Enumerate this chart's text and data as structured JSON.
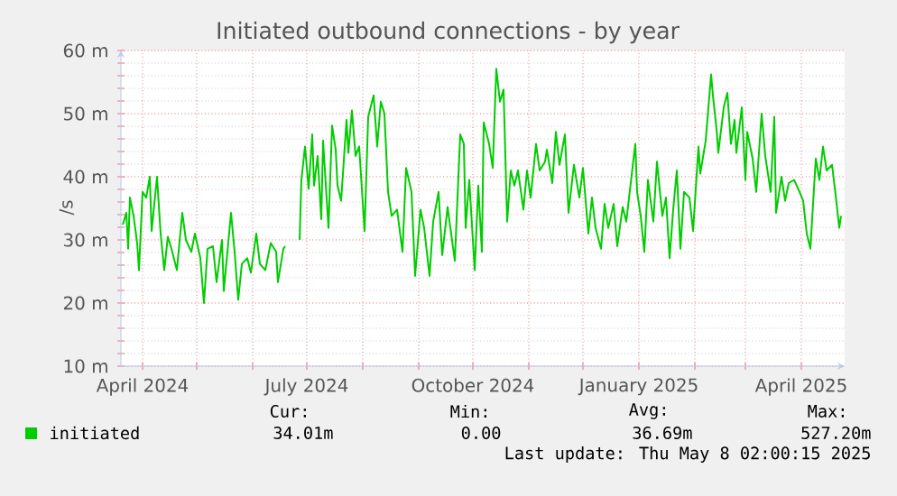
{
  "chart_data": {
    "type": "line",
    "title": "Initiated outbound connections - by year",
    "ylabel": "/s",
    "xlim": [
      "2024-03-20",
      "2025-04-25"
    ],
    "ylim": [
      10,
      60
    ],
    "xticks": [
      {
        "value": "2024-04-01",
        "label": "April 2024"
      },
      {
        "value": "2024-05-01",
        "label": null
      },
      {
        "value": "2024-06-01",
        "label": null
      },
      {
        "value": "2024-07-01",
        "label": "July 2024"
      },
      {
        "value": "2024-08-01",
        "label": null
      },
      {
        "value": "2024-09-01",
        "label": null
      },
      {
        "value": "2024-10-01",
        "label": "October 2024"
      },
      {
        "value": "2024-11-01",
        "label": null
      },
      {
        "value": "2024-12-01",
        "label": null
      },
      {
        "value": "2025-01-01",
        "label": "January 2025"
      },
      {
        "value": "2025-02-01",
        "label": null
      },
      {
        "value": "2025-03-01",
        "label": null
      },
      {
        "value": "2025-04-01",
        "label": "April 2025"
      }
    ],
    "yticks": [
      {
        "value": 10,
        "label": "10 m"
      },
      {
        "value": 20,
        "label": "20 m"
      },
      {
        "value": 30,
        "label": "30 m"
      },
      {
        "value": 40,
        "label": "40 m"
      },
      {
        "value": 50,
        "label": "50 m"
      },
      {
        "value": 60,
        "label": "60 m"
      }
    ],
    "grid": true,
    "legend": "bottom",
    "x": [
      "2024-03-21",
      "2024-03-23",
      "2024-03-24",
      "2024-03-25",
      "2024-03-27",
      "2024-03-29",
      "2024-03-30",
      "2024-04-01",
      "2024-04-03",
      "2024-04-05",
      "2024-04-06",
      "2024-04-09",
      "2024-04-11",
      "2024-04-13",
      "2024-04-15",
      "2024-04-17",
      "2024-04-20",
      "2024-04-23",
      "2024-04-25",
      "2024-04-28",
      "2024-04-30",
      "2024-05-03",
      "2024-05-05",
      "2024-05-07",
      "2024-05-10",
      "2024-05-12",
      "2024-05-15",
      "2024-05-16",
      "2024-05-20",
      "2024-05-22",
      "2024-05-24",
      "2024-05-26",
      "2024-05-29",
      "2024-05-31",
      "2024-06-03",
      "2024-06-05",
      "2024-06-08",
      "2024-06-11",
      "2024-06-14",
      "2024-06-15",
      "2024-06-18",
      "2024-06-19",
      "2024-06-23",
      "2024-06-27",
      "2024-06-28",
      "2024-06-30",
      "2024-07-02",
      "2024-07-04",
      "2024-07-05",
      "2024-07-07",
      "2024-07-09",
      "2024-07-10",
      "2024-07-13",
      "2024-07-15",
      "2024-07-17",
      "2024-07-18",
      "2024-07-20",
      "2024-07-23",
      "2024-07-24",
      "2024-07-26",
      "2024-07-28",
      "2024-07-30",
      "2024-08-02",
      "2024-08-04",
      "2024-08-07",
      "2024-08-09",
      "2024-08-11",
      "2024-08-13",
      "2024-08-15",
      "2024-08-17",
      "2024-08-20",
      "2024-08-23",
      "2024-08-25",
      "2024-08-28",
      "2024-08-30",
      "2024-09-02",
      "2024-09-04",
      "2024-09-07",
      "2024-09-09",
      "2024-09-12",
      "2024-09-14",
      "2024-09-17",
      "2024-09-21",
      "2024-09-24",
      "2024-09-26",
      "2024-09-27",
      "2024-09-29",
      "2024-10-02",
      "2024-10-04",
      "2024-10-06",
      "2024-10-07",
      "2024-10-10",
      "2024-10-12",
      "2024-10-14",
      "2024-10-16",
      "2024-10-18",
      "2024-10-20",
      "2024-10-22",
      "2024-10-24",
      "2024-10-26",
      "2024-10-29",
      "2024-10-31",
      "2024-11-02",
      "2024-11-05",
      "2024-11-07",
      "2024-11-10",
      "2024-11-11",
      "2024-11-14",
      "2024-11-16",
      "2024-11-18",
      "2024-11-21",
      "2024-11-23",
      "2024-11-26",
      "2024-11-29",
      "2024-12-01",
      "2024-12-04",
      "2024-12-06",
      "2024-12-08",
      "2024-12-11",
      "2024-12-13",
      "2024-12-15",
      "2024-12-18",
      "2024-12-20",
      "2024-12-23",
      "2024-12-25",
      "2024-12-30",
      "2024-12-31",
      "2025-01-02",
      "2025-01-04",
      "2025-01-06",
      "2025-01-09",
      "2025-01-11",
      "2025-01-14",
      "2025-01-16",
      "2025-01-18",
      "2025-01-20",
      "2025-01-22",
      "2025-01-24",
      "2025-01-26",
      "2025-01-29",
      "2025-01-31",
      "2025-02-03",
      "2025-02-04",
      "2025-02-07",
      "2025-02-10",
      "2025-02-11",
      "2025-02-13",
      "2025-02-14",
      "2025-02-17",
      "2025-02-19",
      "2025-02-21",
      "2025-02-23",
      "2025-02-24",
      "2025-02-27",
      "2025-03-01",
      "2025-03-02",
      "2025-03-05",
      "2025-03-07",
      "2025-03-10",
      "2025-03-12",
      "2025-03-15",
      "2025-03-17",
      "2025-03-18",
      "2025-03-21",
      "2025-03-23",
      "2025-03-25",
      "2025-03-28",
      "2025-03-31",
      "2025-04-02",
      "2025-04-04",
      "2025-04-06",
      "2025-04-09",
      "2025-04-11",
      "2025-04-13",
      "2025-04-15",
      "2025-04-18",
      "2025-04-20",
      "2025-04-22",
      "2025-04-23"
    ],
    "series": [
      {
        "name": "initiated",
        "color": "#00cc00",
        "values": [
          32.4,
          34.3,
          28.6,
          36.7,
          33.8,
          29.5,
          25.2,
          37.6,
          36.7,
          40,
          31.4,
          40,
          31.0,
          25.2,
          30.5,
          28.6,
          25.2,
          34.3,
          30.0,
          28.1,
          31.0,
          27.1,
          20.0,
          28.6,
          29.0,
          23.3,
          30.0,
          21.9,
          34.3,
          28.1,
          20.5,
          26.2,
          27.1,
          24.8,
          31.0,
          26.2,
          25.2,
          29.5,
          28.1,
          23.3,
          28.6,
          29.0,
          null,
          30.0,
          39.5,
          44.8,
          38.1,
          46.7,
          38.6,
          43.3,
          33.3,
          45.7,
          31.9,
          48.1,
          44.3,
          38.6,
          36.2,
          49.0,
          43.8,
          50.5,
          43.3,
          44.8,
          31.4,
          49.5,
          52.9,
          44.8,
          51.9,
          50.0,
          37.6,
          33.8,
          34.8,
          28.1,
          41.4,
          37.6,
          24.3,
          34.8,
          31.9,
          24.3,
          32.9,
          37.6,
          27.6,
          35.2,
          26.7,
          46.7,
          45.2,
          31.9,
          39.5,
          25.2,
          38.6,
          28.1,
          48.6,
          45.2,
          41.4,
          57.1,
          51.9,
          53.8,
          32.9,
          41.0,
          38.6,
          41.0,
          34.8,
          41.0,
          36.7,
          45.2,
          41.0,
          42.4,
          44.3,
          39.0,
          47.1,
          41.9,
          46.7,
          34.3,
          41.9,
          36.7,
          41.4,
          31.0,
          36.7,
          31.9,
          28.6,
          35.7,
          31.9,
          35.7,
          29.0,
          35.2,
          32.9,
          45.2,
          37.6,
          33.8,
          28.1,
          39.5,
          32.9,
          42.4,
          33.8,
          36.7,
          27.1,
          34.8,
          41.0,
          28.6,
          37.6,
          36.7,
          31.4,
          44.8,
          40.5,
          45.7,
          56.2,
          52.9,
          47.6,
          43.8,
          51.0,
          53.3,
          45.2,
          49.0,
          43.8,
          51.0,
          39.5,
          47.1,
          42.9,
          37.6,
          50.0,
          43.3,
          37.6,
          49.5,
          34.3,
          40.0,
          36.2,
          39.0,
          39.5,
          37.6,
          36.2,
          31.0,
          28.6,
          42.9,
          39.5,
          44.8,
          41.0,
          41.9,
          37.1,
          31.9,
          33.8
        ]
      }
    ],
    "annotations": [
      "Cur:",
      "34.01m",
      "Min:",
      "0.00",
      "Avg:",
      "36.69m",
      "Max:",
      "527.20m",
      "Last update: Thu May  8 02:00:15 2025"
    ]
  }
}
